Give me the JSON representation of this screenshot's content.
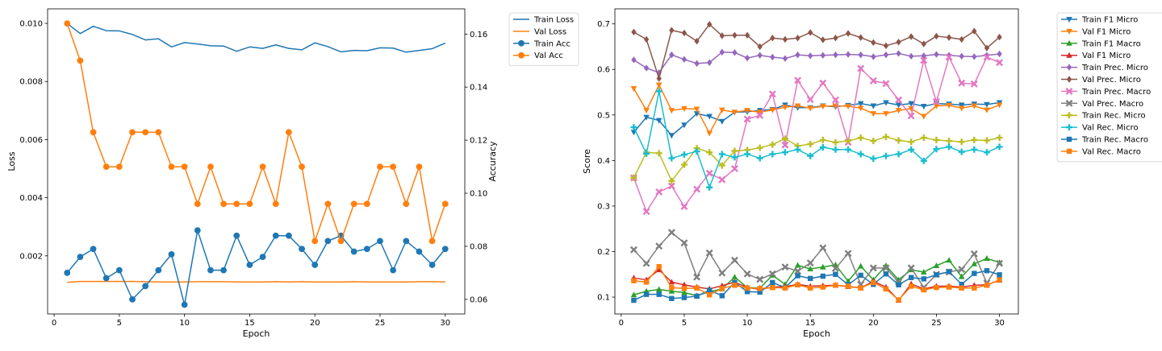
{
  "chart_data": [
    {
      "type": "line",
      "xlabel": "Epoch",
      "ylabel": "Loss",
      "y2label": "Accuracy",
      "xlim": [
        -0.5,
        31.5
      ],
      "xticks": [
        0,
        5,
        10,
        15,
        20,
        25,
        30
      ],
      "ylim": [
        0.0,
        0.0105
      ],
      "yticks": [
        0.002,
        0.004,
        0.006,
        0.008,
        0.01
      ],
      "ytick_labels": [
        "0.002",
        "0.004",
        "0.006",
        "0.008",
        "0.010"
      ],
      "y2lim": [
        0.0545,
        0.1695
      ],
      "y2ticks": [
        0.06,
        0.08,
        0.1,
        0.12,
        0.14,
        0.16
      ],
      "y2tick_labels": [
        "0.06",
        "0.08",
        "0.10",
        "0.12",
        "0.14",
        "0.16"
      ],
      "grid": false,
      "legend": "outside-right",
      "x": [
        1,
        2,
        3,
        4,
        5,
        6,
        7,
        8,
        9,
        10,
        11,
        12,
        13,
        14,
        15,
        16,
        17,
        18,
        19,
        20,
        21,
        22,
        23,
        24,
        25,
        26,
        27,
        28,
        29,
        30
      ],
      "series": [
        {
          "name": "Train Loss",
          "axis": "left",
          "color": "#1f77b4",
          "marker": "none",
          "values": [
            0.01,
            0.00965,
            0.0099,
            0.00975,
            0.00974,
            0.00962,
            0.00943,
            0.00947,
            0.00919,
            0.00934,
            0.00929,
            0.00923,
            0.00922,
            0.00904,
            0.00919,
            0.00914,
            0.00926,
            0.00914,
            0.00909,
            0.00933,
            0.0092,
            0.00902,
            0.00907,
            0.00906,
            0.00916,
            0.00915,
            0.00901,
            0.00907,
            0.00913,
            0.00932
          ]
        },
        {
          "name": "Val Loss",
          "axis": "left",
          "color": "#ff7f0e",
          "marker": "none",
          "values": [
            0.00109,
            0.00112,
            0.00112,
            0.00112,
            0.00112,
            0.00112,
            0.00111,
            0.0011,
            0.0011,
            0.0011,
            0.00111,
            0.00111,
            0.00111,
            0.0011,
            0.0011,
            0.0011,
            0.00111,
            0.0011,
            0.00111,
            0.0011,
            0.0011,
            0.0011,
            0.00111,
            0.0011,
            0.0011,
            0.0011,
            0.0011,
            0.00111,
            0.00111,
            0.0011
          ]
        },
        {
          "name": "Train Acc",
          "axis": "right",
          "color": "#1f77b4",
          "marker": "circle",
          "values": [
            0.07,
            0.076,
            0.079,
            0.068,
            0.071,
            0.06,
            0.065,
            0.071,
            0.077,
            0.058,
            0.086,
            0.071,
            0.071,
            0.084,
            0.073,
            0.076,
            0.084,
            0.084,
            0.079,
            0.073,
            0.082,
            0.084,
            0.078,
            0.079,
            0.082,
            0.071,
            0.082,
            0.078,
            0.073,
            0.079
          ]
        },
        {
          "name": "Val Acc",
          "axis": "right",
          "color": "#ff7f0e",
          "marker": "circle",
          "values": [
            0.164,
            0.15,
            0.123,
            0.11,
            0.11,
            0.123,
            0.123,
            0.123,
            0.11,
            0.11,
            0.096,
            0.11,
            0.096,
            0.096,
            0.096,
            0.11,
            0.096,
            0.123,
            0.11,
            0.082,
            0.096,
            0.082,
            0.096,
            0.096,
            0.11,
            0.11,
            0.096,
            0.11,
            0.082,
            0.096
          ]
        }
      ]
    },
    {
      "type": "line",
      "xlabel": "Epoch",
      "ylabel": "Score",
      "xlim": [
        -0.5,
        31.5
      ],
      "xticks": [
        0,
        5,
        10,
        15,
        20,
        25,
        30
      ],
      "ylim": [
        0.063,
        0.733
      ],
      "yticks": [
        0.1,
        0.2,
        0.3,
        0.4,
        0.5,
        0.6,
        0.7
      ],
      "ytick_labels": [
        "0.1",
        "0.2",
        "0.3",
        "0.4",
        "0.5",
        "0.6",
        "0.7"
      ],
      "grid": false,
      "legend": "outside-right",
      "x": [
        1,
        2,
        3,
        4,
        5,
        6,
        7,
        8,
        9,
        10,
        11,
        12,
        13,
        14,
        15,
        16,
        17,
        18,
        19,
        20,
        21,
        22,
        23,
        24,
        25,
        26,
        27,
        28,
        29,
        30
      ],
      "series": [
        {
          "name": "Train F1 Micro",
          "color": "#1f77b4",
          "marker": "triangle-down",
          "values": [
            0.462,
            0.495,
            0.488,
            0.455,
            0.478,
            0.503,
            0.497,
            0.486,
            0.506,
            0.507,
            0.51,
            0.512,
            0.522,
            0.516,
            0.516,
            0.52,
            0.518,
            0.521,
            0.525,
            0.52,
            0.527,
            0.522,
            0.525,
            0.519,
            0.525,
            0.524,
            0.522,
            0.524,
            0.523,
            0.527
          ]
        },
        {
          "name": "Val F1 Micro",
          "color": "#ff7f0e",
          "marker": "triangle-down",
          "values": [
            0.558,
            0.51,
            0.566,
            0.51,
            0.514,
            0.513,
            0.46,
            0.511,
            0.506,
            0.51,
            0.506,
            0.511,
            0.517,
            0.52,
            0.515,
            0.519,
            0.52,
            0.519,
            0.515,
            0.503,
            0.503,
            0.51,
            0.514,
            0.497,
            0.52,
            0.521,
            0.515,
            0.52,
            0.511,
            0.522
          ]
        },
        {
          "name": "Train F1 Macro",
          "color": "#2ca02c",
          "marker": "triangle-up",
          "values": [
            0.105,
            0.113,
            0.117,
            0.113,
            0.11,
            0.103,
            0.112,
            0.118,
            0.144,
            0.121,
            0.12,
            0.148,
            0.128,
            0.17,
            0.162,
            0.166,
            0.171,
            0.135,
            0.168,
            0.138,
            0.169,
            0.138,
            0.16,
            0.155,
            0.169,
            0.181,
            0.145,
            0.173,
            0.185,
            0.176
          ]
        },
        {
          "name": "Val F1 Micro",
          "color": "#d62728",
          "marker": "triangle-up",
          "values": [
            0.142,
            0.138,
            0.16,
            0.133,
            0.127,
            0.122,
            0.118,
            0.125,
            0.133,
            0.121,
            0.117,
            0.122,
            0.123,
            0.128,
            0.124,
            0.125,
            0.126,
            0.123,
            0.12,
            0.135,
            0.122,
            0.093,
            0.129,
            0.118,
            0.124,
            0.124,
            0.122,
            0.126,
            0.127,
            0.137
          ]
        },
        {
          "name": "Train Prec. Micro",
          "color": "#9467bd",
          "marker": "diamond",
          "values": [
            0.621,
            0.603,
            0.593,
            0.632,
            0.622,
            0.613,
            0.615,
            0.638,
            0.637,
            0.625,
            0.631,
            0.627,
            0.624,
            0.632,
            0.63,
            0.631,
            0.632,
            0.633,
            0.632,
            0.628,
            0.632,
            0.635,
            0.629,
            0.63,
            0.633,
            0.631,
            0.629,
            0.628,
            0.631,
            0.634
          ]
        },
        {
          "name": "Val Prec. Micro",
          "color": "#8c564b",
          "marker": "diamond",
          "values": [
            0.682,
            0.666,
            0.58,
            0.686,
            0.68,
            0.662,
            0.699,
            0.674,
            0.675,
            0.675,
            0.65,
            0.669,
            0.666,
            0.669,
            0.681,
            0.665,
            0.669,
            0.679,
            0.67,
            0.659,
            0.652,
            0.66,
            0.672,
            0.656,
            0.673,
            0.67,
            0.666,
            0.684,
            0.647,
            0.671
          ]
        },
        {
          "name": "Train Prec. Macro",
          "color": "#e377c2",
          "marker": "x-bold",
          "values": [
            0.362,
            0.288,
            0.331,
            0.344,
            0.299,
            0.337,
            0.372,
            0.358,
            0.382,
            0.491,
            0.499,
            0.546,
            0.434,
            0.576,
            0.534,
            0.57,
            0.533,
            0.44,
            0.602,
            0.575,
            0.569,
            0.533,
            0.498,
            0.62,
            0.529,
            0.627,
            0.57,
            0.568,
            0.627,
            0.615
          ]
        },
        {
          "name": "Val Prec. Macro",
          "color": "#7f7f7f",
          "marker": "x-bold",
          "values": [
            0.204,
            0.174,
            0.212,
            0.242,
            0.219,
            0.144,
            0.197,
            0.153,
            0.181,
            0.151,
            0.139,
            0.151,
            0.166,
            0.157,
            0.175,
            0.208,
            0.163,
            0.196,
            0.128,
            0.164,
            0.164,
            0.133,
            0.164,
            0.121,
            0.15,
            0.155,
            0.161,
            0.195,
            0.131,
            0.174
          ]
        },
        {
          "name": "Train Rec. Micro",
          "color": "#bcbd22",
          "marker": "plus-bold",
          "values": [
            0.362,
            0.418,
            0.416,
            0.355,
            0.391,
            0.427,
            0.418,
            0.389,
            0.421,
            0.423,
            0.428,
            0.435,
            0.448,
            0.432,
            0.436,
            0.445,
            0.44,
            0.443,
            0.45,
            0.443,
            0.452,
            0.444,
            0.441,
            0.45,
            0.445,
            0.443,
            0.441,
            0.445,
            0.444,
            0.45
          ]
        },
        {
          "name": "Val Rec. Micro",
          "color": "#17becf",
          "marker": "plus-bold",
          "values": [
            0.473,
            0.415,
            0.552,
            0.405,
            0.413,
            0.42,
            0.341,
            0.414,
            0.407,
            0.414,
            0.405,
            0.414,
            0.418,
            0.424,
            0.41,
            0.429,
            0.424,
            0.424,
            0.414,
            0.404,
            0.41,
            0.414,
            0.424,
            0.399,
            0.425,
            0.43,
            0.419,
            0.424,
            0.418,
            0.43
          ]
        },
        {
          "name": "Train Rec. Macro",
          "color": "#1f77b4",
          "marker": "square",
          "values": [
            0.093,
            0.106,
            0.106,
            0.097,
            0.099,
            0.102,
            0.115,
            0.103,
            0.132,
            0.112,
            0.111,
            0.132,
            0.121,
            0.147,
            0.141,
            0.146,
            0.15,
            0.127,
            0.148,
            0.128,
            0.151,
            0.127,
            0.143,
            0.14,
            0.149,
            0.156,
            0.128,
            0.152,
            0.158,
            0.149
          ]
        },
        {
          "name": "Val Rec. Macro",
          "color": "#ff7f0e",
          "marker": "square",
          "values": [
            0.136,
            0.133,
            0.167,
            0.121,
            0.119,
            0.12,
            0.105,
            0.119,
            0.126,
            0.12,
            0.119,
            0.121,
            0.12,
            0.127,
            0.12,
            0.122,
            0.126,
            0.124,
            0.12,
            0.132,
            0.118,
            0.094,
            0.124,
            0.116,
            0.121,
            0.122,
            0.12,
            0.12,
            0.126,
            0.138
          ]
        }
      ]
    }
  ]
}
